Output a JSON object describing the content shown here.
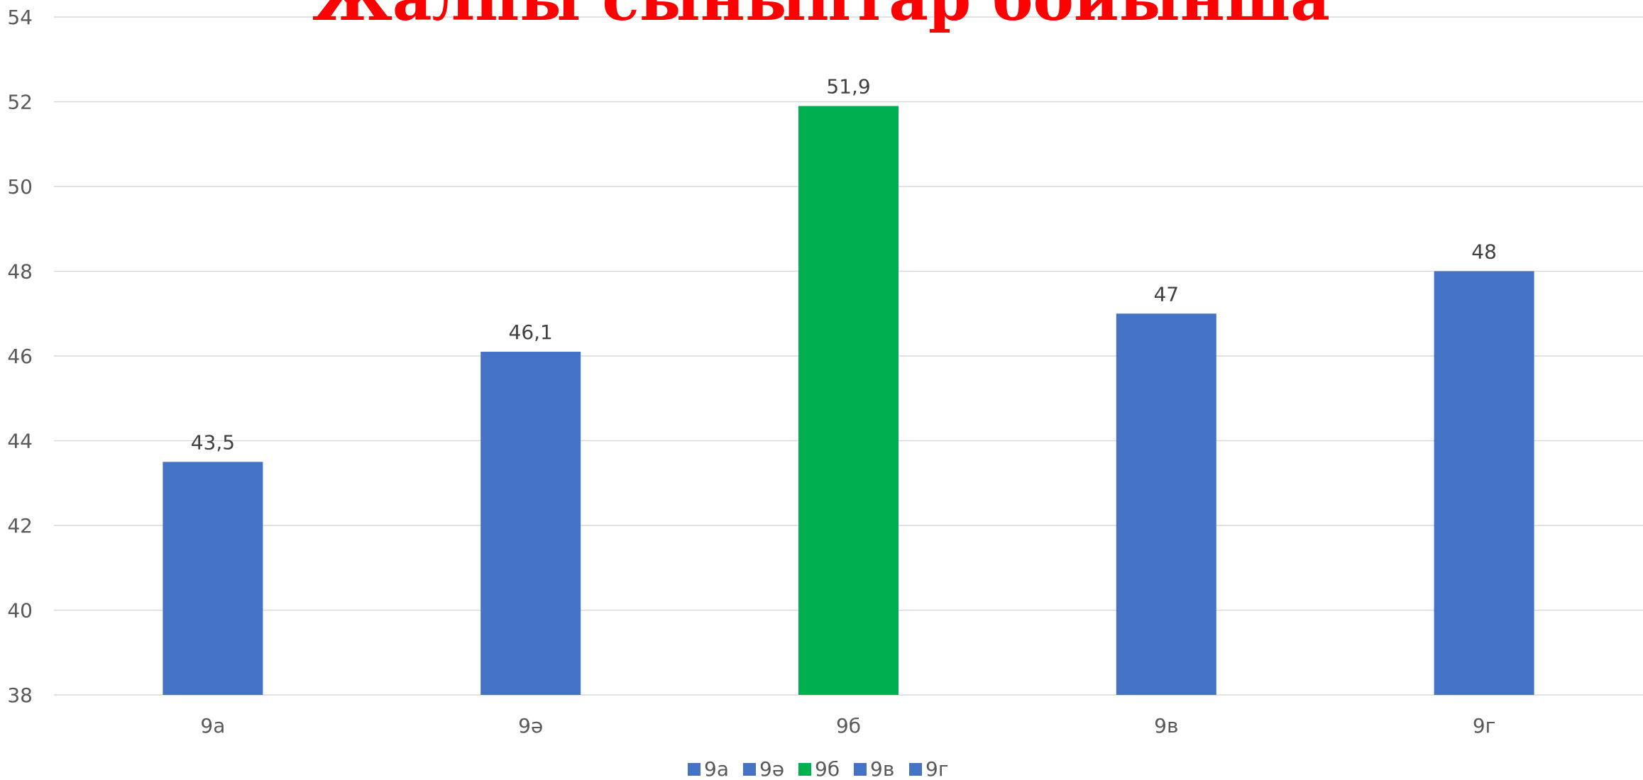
{
  "chart_data": {
    "type": "bar",
    "title": "Жалпы сыныптар бойынша",
    "categories": [
      "9а",
      "9ә",
      "9б",
      "9в",
      "9г"
    ],
    "values": [
      43.5,
      46.1,
      51.9,
      47,
      48
    ],
    "data_labels": [
      "43,5",
      "46,1",
      "51,9",
      "47",
      "48"
    ],
    "bar_colors": [
      "#4472c4",
      "#4472c4",
      "#00b050",
      "#4472c4",
      "#4472c4"
    ],
    "ylim": [
      38,
      54
    ],
    "yticks": [
      38,
      40,
      42,
      44,
      46,
      48,
      50,
      52,
      54
    ],
    "xlabel": "",
    "ylabel": "",
    "grid": true,
    "legend": {
      "placement": "bottom",
      "entries": [
        "9а",
        "9ә",
        "9б",
        "9в",
        "9г"
      ]
    }
  }
}
